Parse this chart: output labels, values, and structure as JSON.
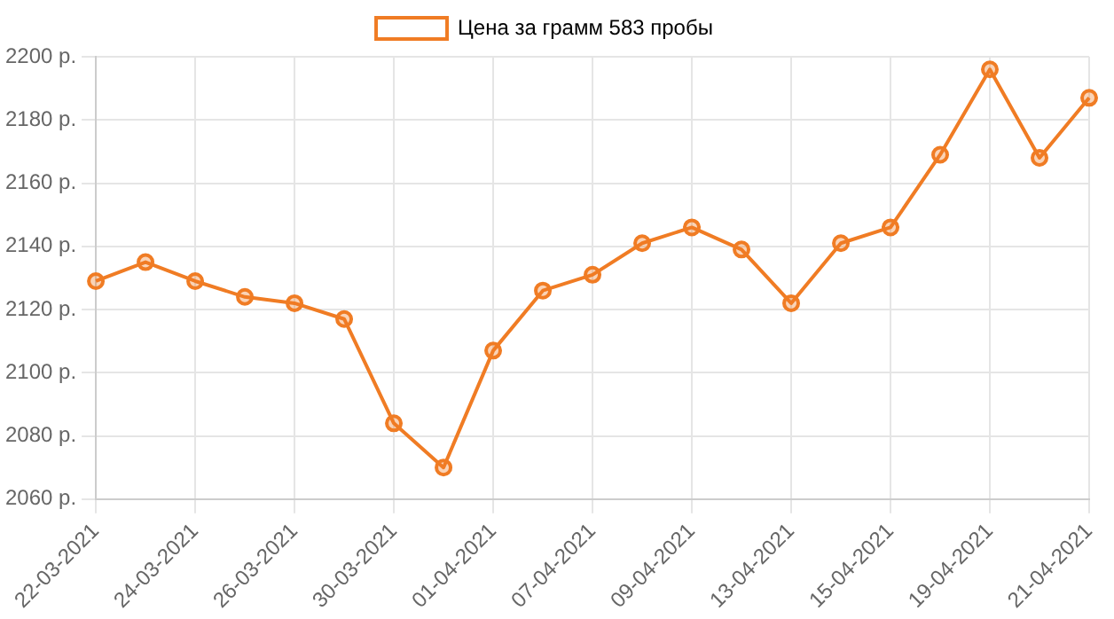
{
  "chart_data": {
    "type": "line",
    "categories": [
      "22-03-2021",
      null,
      "24-03-2021",
      null,
      "26-03-2021",
      null,
      "30-03-2021",
      null,
      "01-04-2021",
      null,
      "07-04-2021",
      null,
      "09-04-2021",
      null,
      "13-04-2021",
      null,
      "15-04-2021",
      null,
      "19-04-2021",
      null,
      "21-04-2021"
    ],
    "series": [
      {
        "name": "Цена за грамм 583 пробы",
        "color": "#f07c24",
        "values": [
          2129,
          2135,
          2129,
          2124,
          2122,
          2117,
          2084,
          2070,
          2107,
          2126,
          2131,
          2141,
          2146,
          2139,
          2122,
          2141,
          2146,
          2169,
          2196,
          2168,
          2187
        ]
      }
    ],
    "ylim": [
      2060,
      2200
    ],
    "yticks": [
      {
        "value": 2060,
        "label": "2060 р."
      },
      {
        "value": 2080,
        "label": "2080 р."
      },
      {
        "value": 2100,
        "label": "2100 р."
      },
      {
        "value": 2120,
        "label": "2120 р."
      },
      {
        "value": 2140,
        "label": "2140 р."
      },
      {
        "value": 2160,
        "label": "2160 р."
      },
      {
        "value": 2180,
        "label": "2180 р."
      },
      {
        "value": 2200,
        "label": "2200 р."
      }
    ],
    "grid": true,
    "legend": "top",
    "marker": "circle",
    "line_style": "solid"
  }
}
